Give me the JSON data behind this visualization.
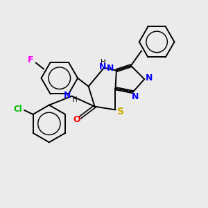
{
  "bg_color": "#ebebeb",
  "bond_color": "#000000",
  "atom_colors": {
    "N": "#0000ff",
    "O": "#ff0000",
    "S": "#ccaa00",
    "F": "#ff00ff",
    "Cl": "#00bb00",
    "H": "#000000"
  },
  "figsize": [
    3.0,
    3.0
  ],
  "dpi": 100
}
